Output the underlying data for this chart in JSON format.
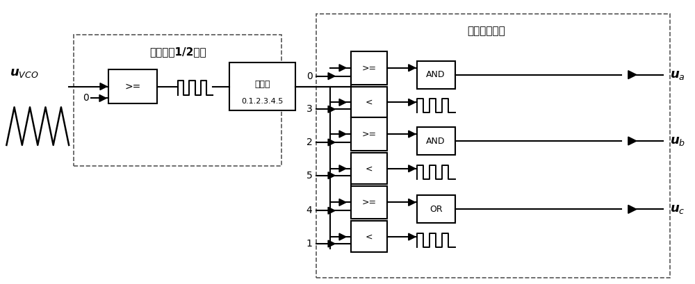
{
  "bg_color": "#ffffff",
  "line_color": "#000000",
  "box_color": "#ffffff",
  "dashed_color": "#555555",
  "fig_width": 10.0,
  "fig_height": 4.09,
  "u_vco_label": "$\\boldsymbol{u}_{VCO}$",
  "block1_title": "占空比为1/2方波",
  "counter_label": "计数器\n0.1.2.3.4.5",
  "block2_title": "计数移相模块",
  "ge_label": ">=",
  "lt_label": "<",
  "and_label": "AND",
  "or_label": "OR",
  "ua_label": "$\\boldsymbol{u}_a$",
  "ub_label": "$\\boldsymbol{u}_b$",
  "uc_label": "$\\boldsymbol{u}_c$",
  "input_values_a": [
    "0",
    "3"
  ],
  "input_values_b": [
    "2",
    "5"
  ],
  "input_values_c": [
    "4",
    "1"
  ]
}
